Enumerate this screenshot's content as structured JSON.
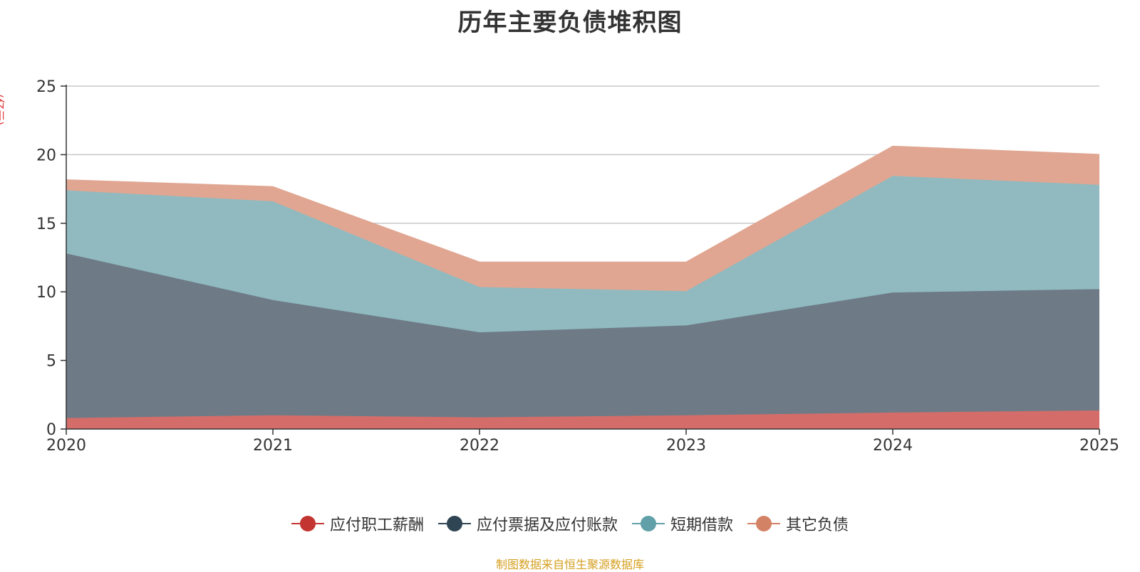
{
  "chart_data": {
    "type": "area",
    "stacked": true,
    "title": "历年主要负债堆积图",
    "unit_label": "(亿元)",
    "categories": [
      "2020",
      "2021",
      "2022",
      "2023",
      "2024",
      "2025"
    ],
    "y_ticks": [
      "0",
      "5",
      "10",
      "15",
      "20",
      "25"
    ],
    "ylim": [
      0,
      25
    ],
    "grid": true,
    "legend_position": "bottom",
    "series": [
      {
        "name": "应付职工薪酬",
        "color": "#c23531",
        "fill": "#d46d69",
        "values": [
          0.8,
          1.0,
          0.85,
          1.0,
          1.2,
          1.35
        ]
      },
      {
        "name": "应付票据及应付账款",
        "color": "#2f4554",
        "fill": "#6e7b86",
        "values": [
          12.0,
          8.4,
          6.2,
          6.55,
          8.75,
          8.85
        ]
      },
      {
        "name": "短期借款",
        "color": "#61a0a8",
        "fill": "#90bac0",
        "values": [
          4.6,
          7.2,
          3.3,
          2.5,
          8.5,
          7.6
        ]
      },
      {
        "name": "其它负债",
        "color": "#d48265",
        "fill": "#e0a692",
        "values": [
          0.75,
          1.05,
          1.8,
          2.1,
          2.15,
          2.2
        ]
      }
    ]
  },
  "source_note": "制图数据来自恒生聚源数据库"
}
